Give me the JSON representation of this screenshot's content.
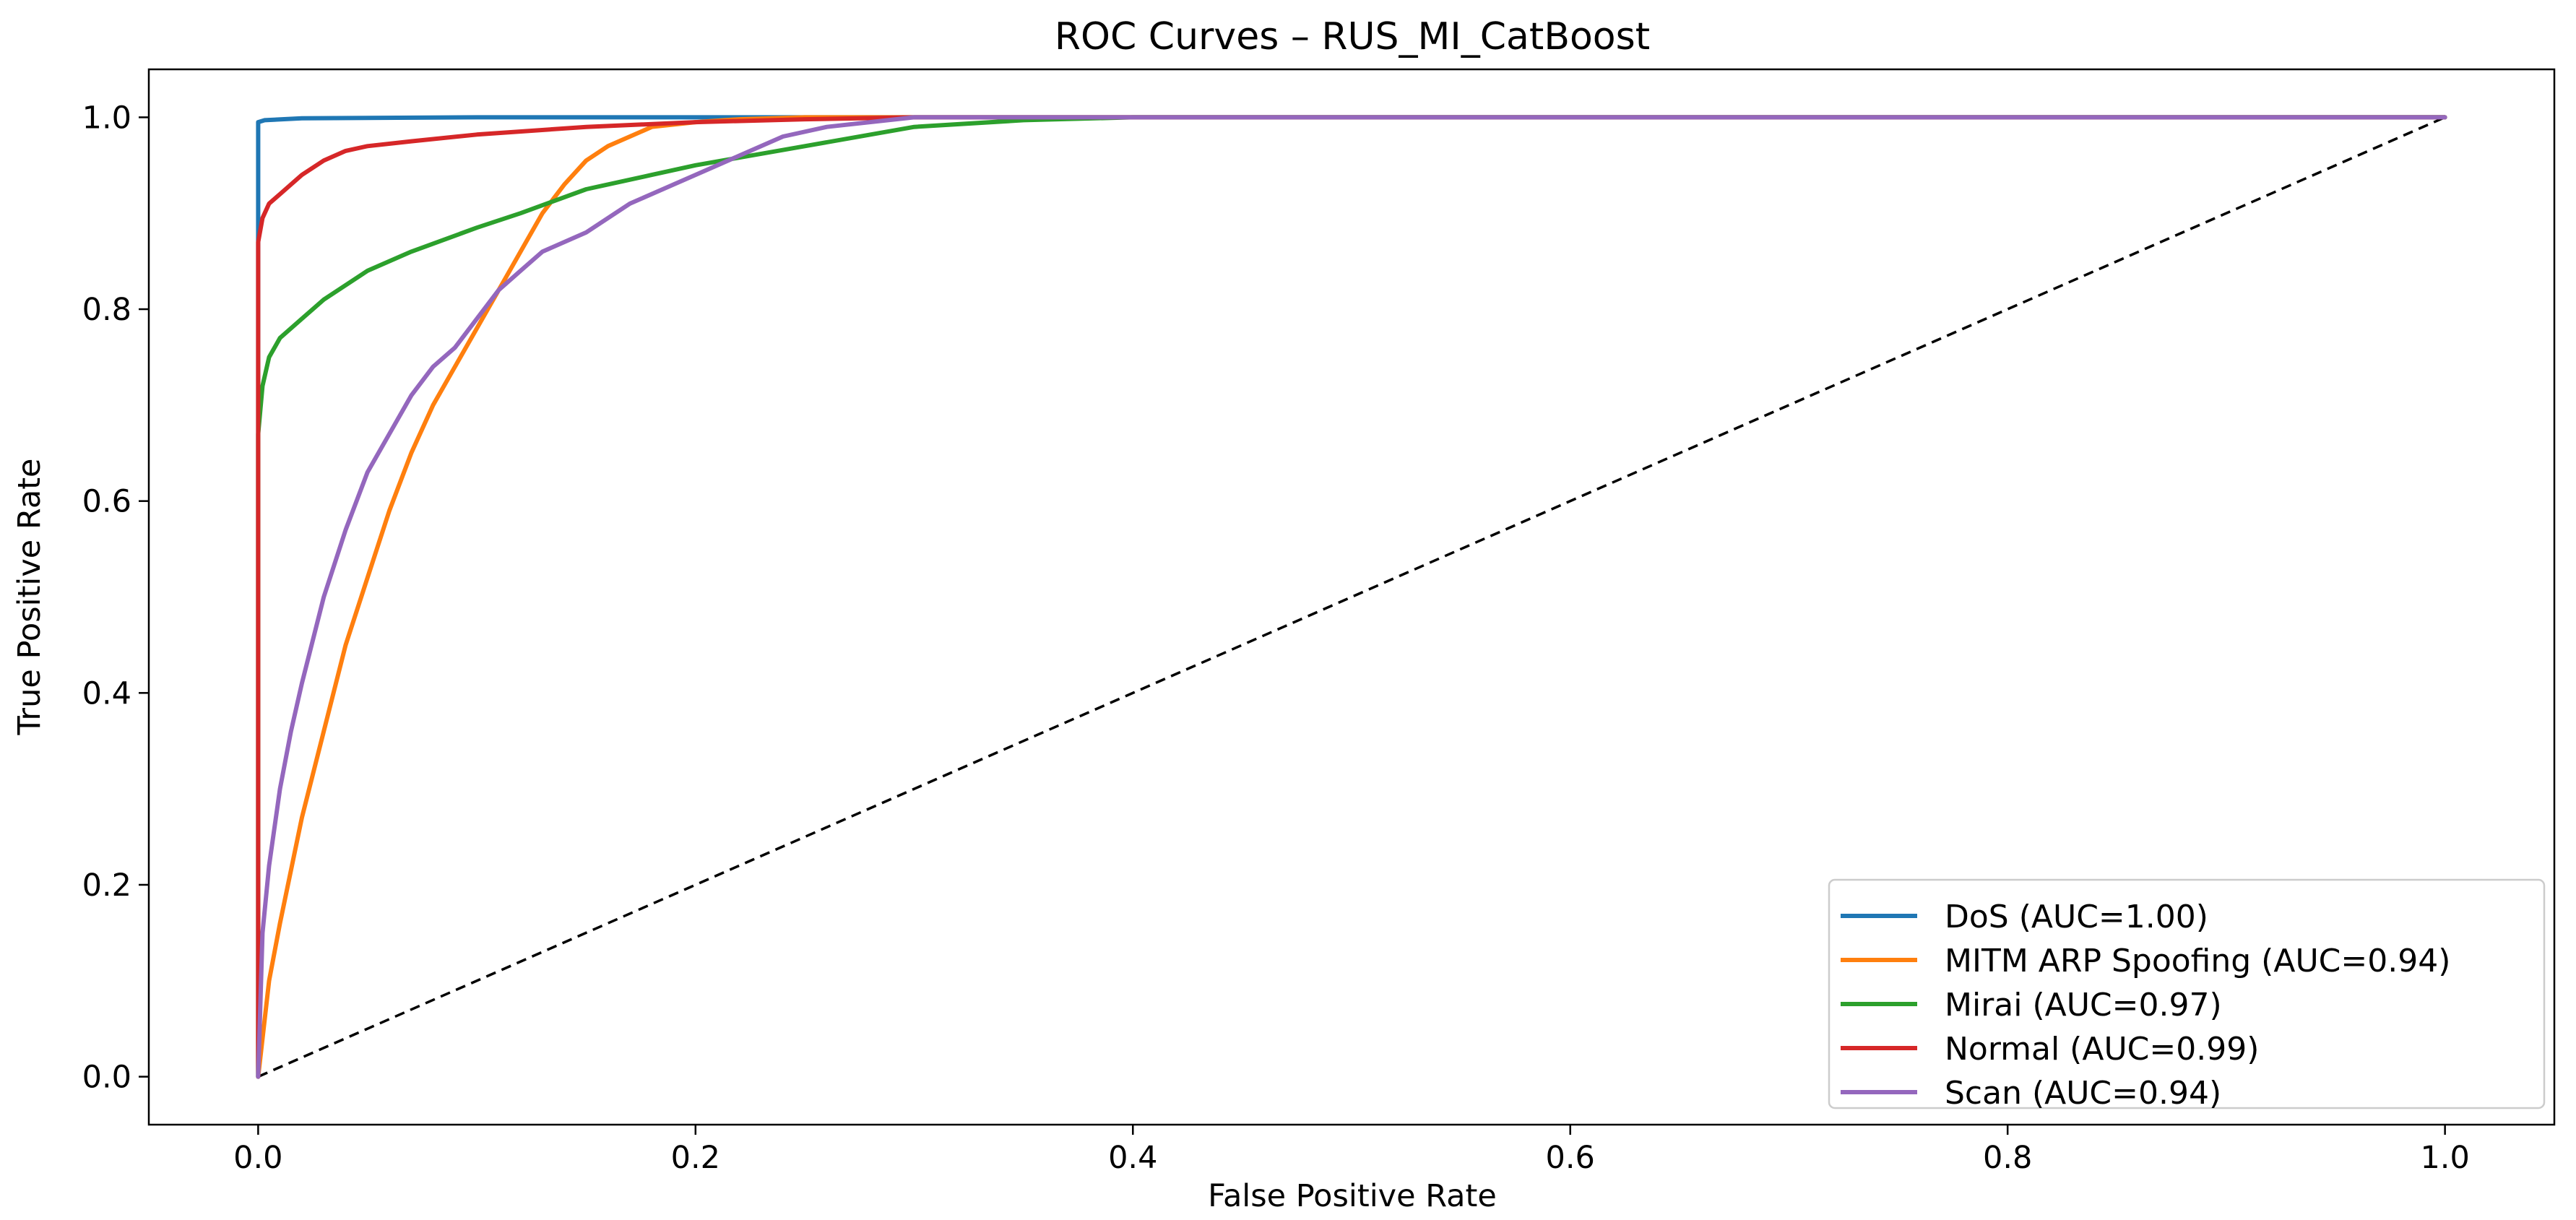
{
  "chart_data": {
    "type": "line",
    "title": "ROC Curves – RUS_MI_CatBoost",
    "xlabel": "False Positive Rate",
    "ylabel": "True Positive Rate",
    "xlim": [
      -0.05,
      1.05
    ],
    "ylim": [
      -0.05,
      1.05
    ],
    "x_ticks": [
      0.0,
      0.2,
      0.4,
      0.6,
      0.8,
      1.0
    ],
    "y_ticks": [
      0.0,
      0.2,
      0.4,
      0.6,
      0.8,
      1.0
    ],
    "x_tick_labels": [
      "0.0",
      "0.2",
      "0.4",
      "0.6",
      "0.8",
      "1.0"
    ],
    "y_tick_labels": [
      "0.0",
      "0.2",
      "0.4",
      "0.6",
      "0.8",
      "1.0"
    ],
    "grid": false,
    "legend_position": "lower-right",
    "series": [
      {
        "name": "DoS (AUC=1.00)",
        "color": "#1f77b4",
        "x": [
          0.0,
          0.0,
          0.0,
          0.003,
          0.02,
          0.1,
          1.0
        ],
        "y": [
          0.0,
          0.9,
          0.995,
          0.997,
          0.999,
          1.0,
          1.0
        ]
      },
      {
        "name": "MITM ARP Spoofing (AUC=0.94)",
        "color": "#ff7f0e",
        "x": [
          0.0,
          0.005,
          0.01,
          0.02,
          0.03,
          0.04,
          0.05,
          0.06,
          0.07,
          0.08,
          0.09,
          0.1,
          0.11,
          0.12,
          0.13,
          0.14,
          0.15,
          0.16,
          0.17,
          0.18,
          0.2,
          0.22,
          0.25,
          0.3,
          1.0
        ],
        "y": [
          0.0,
          0.1,
          0.16,
          0.27,
          0.36,
          0.45,
          0.52,
          0.59,
          0.65,
          0.7,
          0.74,
          0.78,
          0.82,
          0.86,
          0.9,
          0.93,
          0.955,
          0.97,
          0.98,
          0.99,
          0.995,
          0.998,
          1.0,
          1.0,
          1.0
        ]
      },
      {
        "name": "Mirai (AUC=0.97)",
        "color": "#2ca02c",
        "x": [
          0.0,
          0.0,
          0.002,
          0.005,
          0.01,
          0.02,
          0.03,
          0.05,
          0.07,
          0.1,
          0.12,
          0.15,
          0.18,
          0.2,
          0.25,
          0.3,
          0.35,
          0.4,
          1.0
        ],
        "y": [
          0.0,
          0.67,
          0.72,
          0.75,
          0.77,
          0.79,
          0.81,
          0.84,
          0.86,
          0.885,
          0.9,
          0.925,
          0.94,
          0.95,
          0.97,
          0.99,
          0.997,
          1.0,
          1.0
        ]
      },
      {
        "name": "Normal (AUC=0.99)",
        "color": "#d62728",
        "x": [
          0.0,
          0.0,
          0.002,
          0.005,
          0.01,
          0.015,
          0.02,
          0.03,
          0.04,
          0.05,
          0.07,
          0.1,
          0.15,
          0.2,
          0.25,
          0.3,
          1.0
        ],
        "y": [
          0.0,
          0.87,
          0.895,
          0.91,
          0.92,
          0.93,
          0.94,
          0.955,
          0.965,
          0.97,
          0.975,
          0.982,
          0.99,
          0.995,
          0.998,
          1.0,
          1.0
        ]
      },
      {
        "name": "Scan (AUC=0.94)",
        "color": "#9467bd",
        "x": [
          0.0,
          0.002,
          0.005,
          0.01,
          0.015,
          0.02,
          0.03,
          0.04,
          0.05,
          0.06,
          0.07,
          0.08,
          0.09,
          0.1,
          0.11,
          0.12,
          0.13,
          0.15,
          0.17,
          0.19,
          0.2,
          0.22,
          0.24,
          0.26,
          0.3,
          1.0
        ],
        "y": [
          0.0,
          0.15,
          0.22,
          0.3,
          0.36,
          0.41,
          0.5,
          0.57,
          0.63,
          0.67,
          0.71,
          0.74,
          0.76,
          0.79,
          0.82,
          0.84,
          0.86,
          0.88,
          0.91,
          0.93,
          0.94,
          0.96,
          0.98,
          0.99,
          1.0,
          1.0
        ]
      }
    ],
    "reference_line": {
      "color": "#000000",
      "x": [
        0.0,
        1.0
      ],
      "y": [
        0.0,
        1.0
      ]
    }
  }
}
